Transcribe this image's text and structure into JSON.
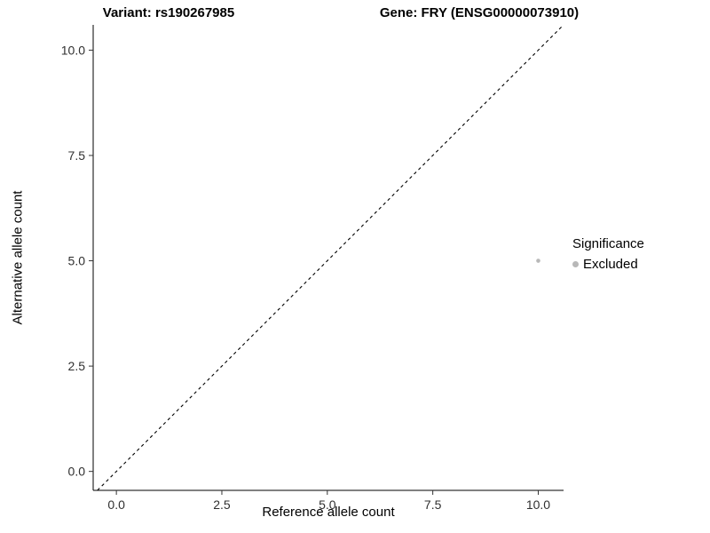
{
  "chart_data": {
    "type": "scatter",
    "title_left": "Variant: rs190267985",
    "title_right": "Gene: FRY (ENSG00000073910)",
    "xlabel": "Reference allele count",
    "ylabel": "Alternative allele count",
    "xlim": [
      -0.55,
      10.6
    ],
    "ylim": [
      -0.45,
      10.6
    ],
    "xticks": [
      0.0,
      2.5,
      5.0,
      7.5,
      10.0
    ],
    "yticks": [
      0.0,
      2.5,
      5.0,
      7.5,
      10.0
    ],
    "xtick_labels": [
      "0.0",
      "2.5",
      "5.0",
      "7.5",
      "10.0"
    ],
    "ytick_labels": [
      "0.0",
      "2.5",
      "5.0",
      "7.5",
      "10.0"
    ],
    "grid": false,
    "reference_line": {
      "type": "identity",
      "style": "dashed",
      "color": "#000000"
    },
    "series": [
      {
        "name": "Excluded",
        "color": "#b8b8b8",
        "point_radius": 2.3,
        "points": [
          {
            "x": 10,
            "y": 5
          }
        ]
      }
    ],
    "legend": {
      "title": "Significance",
      "position": "right",
      "entries": [
        {
          "label": "Excluded",
          "color": "#b8b8b8"
        }
      ]
    },
    "colors": {
      "axis_line": "#000000",
      "tick_mark": "#333333",
      "tick_label": "#303030"
    }
  }
}
